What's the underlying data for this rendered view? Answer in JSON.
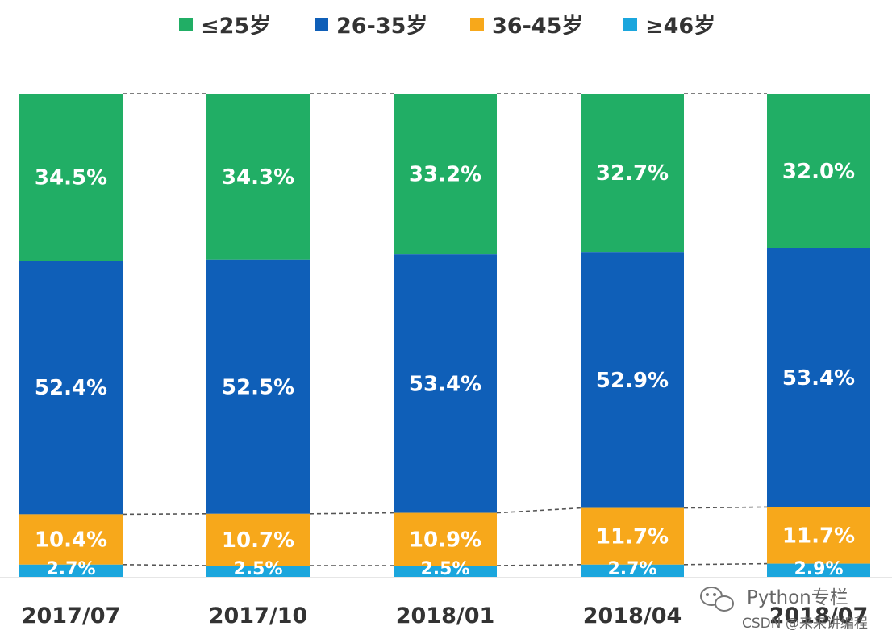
{
  "chart_data": {
    "type": "bar",
    "stacked": true,
    "normalized": true,
    "categories": [
      "2017/07",
      "2017/10",
      "2018/01",
      "2018/04",
      "2018/07"
    ],
    "series": [
      {
        "name": "≤25岁",
        "color": "#21AE65",
        "values": [
          34.5,
          34.3,
          33.2,
          32.7,
          32.0
        ]
      },
      {
        "name": "26-35岁",
        "color": "#0F5FB8",
        "values": [
          52.4,
          52.5,
          53.4,
          52.9,
          53.4
        ]
      },
      {
        "name": "36-45岁",
        "color": "#F7A81B",
        "values": [
          10.4,
          10.7,
          10.9,
          11.7,
          11.7
        ]
      },
      {
        "name": "≥46岁",
        "color": "#1BA6DD",
        "values": [
          2.7,
          2.5,
          2.5,
          2.7,
          2.9
        ]
      }
    ],
    "labels": [
      [
        "34.5%",
        "34.3%",
        "33.2%",
        "32.7%",
        "32.0%"
      ],
      [
        "52.4%",
        "52.5%",
        "53.4%",
        "52.9%",
        "53.4%"
      ],
      [
        "10.4%",
        "10.7%",
        "10.9%",
        "11.7%",
        "11.7%"
      ],
      [
        "2.7%",
        "2.5%",
        "2.5%",
        "2.7%",
        "2.9%"
      ]
    ],
    "ylim": [
      0,
      100
    ],
    "value_unit": "%",
    "legend_position": "top",
    "grid": false,
    "connector_lines": "dashed"
  },
  "watermark": {
    "brand": "Python专栏",
    "source": "CSDN @来来讲编程",
    "brand_icon": "wechat-icon"
  }
}
